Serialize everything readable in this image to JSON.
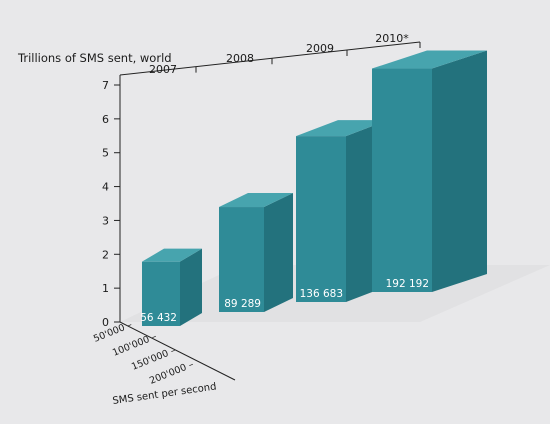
{
  "chart_data": {
    "type": "bar",
    "title": "Trillions of SMS sent, world",
    "categories": [
      "2007",
      "2008",
      "2009",
      "2010*"
    ],
    "series": [
      {
        "values": [
          1.9,
          3.1,
          4.9,
          6.6
        ]
      }
    ],
    "bar_labels": [
      "56 432",
      "89 289",
      "136 683",
      "192 192"
    ],
    "ylim": [
      0,
      7
    ],
    "yticks": [
      "0",
      "1",
      "2",
      "3",
      "4",
      "5",
      "6",
      "7"
    ],
    "depth_axis": {
      "label": "SMS sent per second",
      "ticks": [
        "50'000 –",
        "100'000 –",
        "150'000 –",
        "200'000 –"
      ]
    },
    "grid": false,
    "colors": {
      "bar_front": "#2f8b97",
      "bar_side": "#23727d",
      "bar_top": "#47a4ae",
      "floor": "#dadbdd",
      "label": "#ffffff"
    }
  }
}
